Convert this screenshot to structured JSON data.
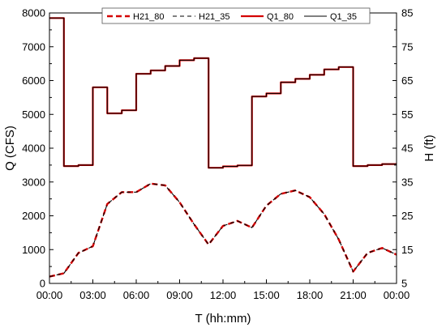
{
  "chart_data": {
    "type": "line",
    "xlabel": "T (hh:mm)",
    "ylabel_left": "Q (CFS)",
    "ylabel_right": "H (ft)",
    "xlim": [
      0,
      24
    ],
    "ylim_left": [
      0,
      8000
    ],
    "ylim_right": [
      5,
      85
    ],
    "x_ticks": [
      "00:00",
      "03:00",
      "06:00",
      "09:00",
      "12:00",
      "15:00",
      "18:00",
      "21:00",
      "00:00"
    ],
    "y_left_ticks": [
      "0",
      "1000",
      "2000",
      "3000",
      "4000",
      "5000",
      "6000",
      "7000",
      "8000"
    ],
    "y_right_ticks": [
      "5",
      "15",
      "25",
      "35",
      "45",
      "55",
      "65",
      "75",
      "85"
    ],
    "legend_position": "top",
    "series": [
      {
        "name": "H21_80",
        "axis": "right",
        "style": "dashed",
        "color": "#d40000",
        "x": [
          0,
          1,
          2,
          3,
          4,
          5,
          6,
          7,
          8,
          9,
          10,
          11,
          12,
          13,
          14,
          15,
          16,
          17,
          18,
          19,
          20,
          21,
          22,
          23,
          24
        ],
        "y": [
          7.0,
          8.0,
          14.0,
          16.0,
          28.5,
          32.0,
          32.0,
          34.5,
          34.0,
          29.0,
          22.5,
          16.5,
          22.0,
          23.5,
          21.5,
          28.0,
          31.5,
          32.5,
          30.5,
          25.5,
          18.0,
          8.5,
          14.0,
          15.5,
          13.5
        ]
      },
      {
        "name": "H21_35",
        "axis": "right",
        "style": "dashed",
        "color": "#000000",
        "x": [
          0,
          1,
          2,
          3,
          4,
          5,
          6,
          7,
          8,
          9,
          10,
          11,
          12,
          13,
          14,
          15,
          16,
          17,
          18,
          19,
          20,
          21,
          22,
          23,
          24
        ],
        "y": [
          7.0,
          8.0,
          14.0,
          16.0,
          28.5,
          32.0,
          32.0,
          34.5,
          34.0,
          29.0,
          22.5,
          16.5,
          22.0,
          23.5,
          21.5,
          28.0,
          31.5,
          32.5,
          30.5,
          25.5,
          18.0,
          8.5,
          14.0,
          15.5,
          13.5
        ]
      },
      {
        "name": "Q1_80",
        "axis": "left",
        "style": "step",
        "color": "#d40000",
        "x": [
          0,
          1,
          2,
          3,
          4,
          5,
          6,
          7,
          8,
          9,
          10,
          11,
          12,
          13,
          14,
          15,
          16,
          17,
          18,
          19,
          20,
          21,
          22,
          23
        ],
        "y": [
          7850,
          3470,
          3500,
          5800,
          5030,
          5120,
          6200,
          6300,
          6430,
          6600,
          6660,
          3420,
          3460,
          3490,
          5530,
          5620,
          5950,
          6050,
          6170,
          6330,
          6400,
          3470,
          3500,
          3530
        ]
      },
      {
        "name": "Q1_35",
        "axis": "left",
        "style": "step",
        "color": "#000000",
        "x": [
          0,
          1,
          2,
          3,
          4,
          5,
          6,
          7,
          8,
          9,
          10,
          11,
          12,
          13,
          14,
          15,
          16,
          17,
          18,
          19,
          20,
          21,
          22,
          23
        ],
        "y": [
          7850,
          3470,
          3500,
          5800,
          5030,
          5120,
          6200,
          6300,
          6430,
          6600,
          6660,
          3420,
          3460,
          3490,
          5530,
          5620,
          5950,
          6050,
          6170,
          6330,
          6400,
          3470,
          3500,
          3530
        ]
      }
    ]
  }
}
